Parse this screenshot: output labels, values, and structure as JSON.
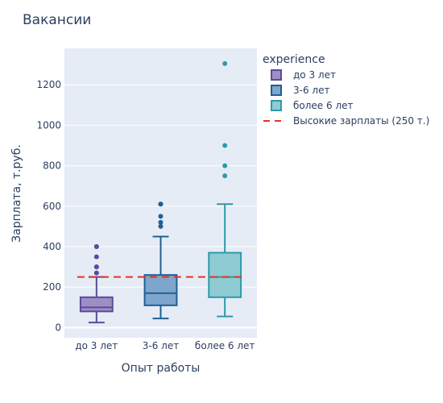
{
  "chart_data": {
    "type": "box",
    "title": "Вакансии",
    "xlabel": "Опыт работы",
    "ylabel": "Зарплата, т.руб.",
    "ylim": [
      -50,
      1380
    ],
    "yticks": [
      0,
      200,
      400,
      600,
      800,
      1000,
      1200
    ],
    "categories": [
      "до 3 лет",
      "3-6 лет",
      "более 6 лет"
    ],
    "legend_title": "experience",
    "series": [
      {
        "name": "до 3 лет",
        "color": "#5c4a9c",
        "fill": "#9d8fc4",
        "box": {
          "lowerfence": 25,
          "q1": 80,
          "median": 100,
          "q3": 150,
          "upperfence": 250
        },
        "outliers": [
          400,
          400,
          350,
          300,
          300,
          270
        ]
      },
      {
        "name": "3-6 лет",
        "color": "#1f5f96",
        "fill": "#7ea6cc",
        "box": {
          "lowerfence": 45,
          "q1": 110,
          "median": 170,
          "q3": 260,
          "upperfence": 450
        },
        "outliers": [
          610,
          610,
          550,
          520,
          500
        ]
      },
      {
        "name": "более 6 лет",
        "color": "#2e9aa8",
        "fill": "#8ecbd3",
        "box": {
          "lowerfence": 55,
          "q1": 150,
          "median": 250,
          "q3": 370,
          "upperfence": 610
        },
        "outliers": [
          750,
          800,
          900,
          1305
        ]
      }
    ],
    "reference_line": {
      "name": "Высокие зарплаты (250 т.)",
      "value": 250,
      "color": "#e8341c",
      "style": "dashed"
    },
    "grid": true,
    "legend_position": "right"
  }
}
